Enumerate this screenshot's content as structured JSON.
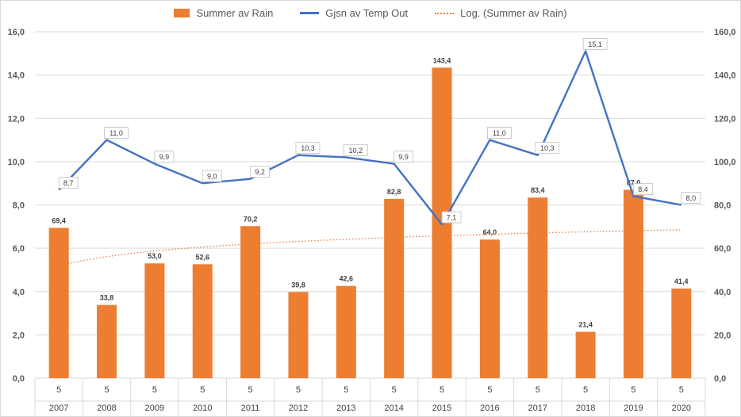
{
  "chart_data": {
    "type": "bar",
    "categories": [
      "2007",
      "2008",
      "2009",
      "2010",
      "2011",
      "2012",
      "2013",
      "2014",
      "2015",
      "2016",
      "2017",
      "2018",
      "2019",
      "2020"
    ],
    "x_sub_labels": [
      "5",
      "5",
      "5",
      "5",
      "5",
      "5",
      "5",
      "5",
      "5",
      "5",
      "5",
      "5",
      "5",
      "5"
    ],
    "series": [
      {
        "name": "Summer av Rain",
        "type": "bar",
        "axis": "right",
        "values": [
          69.4,
          33.8,
          53.0,
          52.6,
          70.2,
          39.8,
          42.6,
          82.8,
          143.4,
          64.0,
          83.4,
          21.4,
          87.0,
          41.4
        ],
        "labels": [
          "69,4",
          "33,8",
          "53,0",
          "52,6",
          "70,2",
          "39,8",
          "42,6",
          "82,8",
          "143,4",
          "64,0",
          "83,4",
          "21,4",
          "87,0",
          "41,4"
        ]
      },
      {
        "name": "Gjsn av Temp Out",
        "type": "line",
        "axis": "left",
        "values": [
          8.7,
          11.0,
          9.9,
          9.0,
          9.2,
          10.3,
          10.2,
          9.9,
          7.1,
          11.0,
          10.3,
          15.1,
          8.4,
          8.0
        ],
        "labels": [
          "8,7",
          "11,0",
          "9,9",
          "9,0",
          "9,2",
          "10,3",
          "10,2",
          "9,9",
          "7,1",
          "11,0",
          "10,3",
          "15,1",
          "8,4",
          "8,0"
        ]
      },
      {
        "name": "Log. (Summer av Rain)",
        "type": "trendline-log",
        "axis": "right"
      }
    ],
    "y_left": {
      "ylim": [
        0,
        16
      ],
      "ticks": [
        "0,0",
        "2,0",
        "4,0",
        "6,0",
        "8,0",
        "10,0",
        "12,0",
        "14,0",
        "16,0"
      ]
    },
    "y_right": {
      "ylim": [
        0,
        160
      ],
      "ticks": [
        "0,0",
        "20,0",
        "40,0",
        "60,0",
        "80,0",
        "100,0",
        "120,0",
        "140,0",
        "160,0"
      ]
    },
    "grid": true,
    "legend_position": "top",
    "colors": {
      "bar": "#ED7D31",
      "line": "#4472C4",
      "trend": "#ED7D31",
      "grid": "#d9d9d9",
      "text": "#595959"
    }
  }
}
